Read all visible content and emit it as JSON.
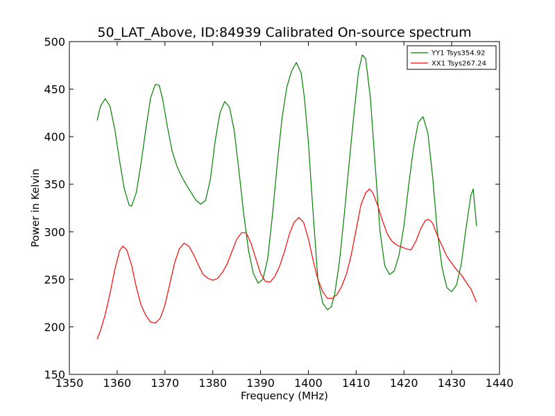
{
  "chart_data": {
    "type": "line",
    "title": "50_LAT_Above, ID:84939 Calibrated On-source spectrum",
    "xlabel": "Frequency (MHz)",
    "ylabel": "Power in Kelvin",
    "xlim": [
      1350,
      1440
    ],
    "ylim": [
      150,
      500
    ],
    "xticks": [
      1350,
      1360,
      1370,
      1380,
      1390,
      1400,
      1410,
      1420,
      1430,
      1440
    ],
    "yticks": [
      150,
      200,
      250,
      300,
      350,
      400,
      450,
      500
    ],
    "grid": false,
    "legend_position": "top-right",
    "series": [
      {
        "name": "YY1 Tsys354.92",
        "color": "#008000",
        "x": [
          1355.8,
          1356.5,
          1357.5,
          1358.5,
          1359.5,
          1360.5,
          1361.5,
          1362.5,
          1363.0,
          1364.0,
          1365.0,
          1366.0,
          1367.0,
          1368.0,
          1368.8,
          1369.5,
          1370.5,
          1371.5,
          1372.5,
          1373.5,
          1374.5,
          1375.5,
          1376.5,
          1377.5,
          1378.5,
          1379.5,
          1380.5,
          1381.5,
          1382.5,
          1383.5,
          1384.5,
          1385.5,
          1386.5,
          1387.5,
          1388.5,
          1389.5,
          1390.5,
          1391.5,
          1392.5,
          1393.5,
          1394.5,
          1395.5,
          1396.5,
          1397.5,
          1398.5,
          1399.2,
          1400.0,
          1401.0,
          1402.0,
          1403.0,
          1404.0,
          1404.8,
          1405.5,
          1406.5,
          1407.5,
          1408.5,
          1409.5,
          1410.5,
          1411.3,
          1412.0,
          1413.0,
          1414.0,
          1415.0,
          1416.0,
          1417.0,
          1418.0,
          1419.0,
          1420.0,
          1421.0,
          1422.0,
          1423.0,
          1424.0,
          1425.0,
          1426.0,
          1427.0,
          1428.0,
          1429.0,
          1430.0,
          1431.0,
          1432.0,
          1433.0,
          1434.0,
          1434.5,
          1435.2
        ],
        "y": [
          417,
          432,
          440,
          432,
          408,
          375,
          345,
          328,
          327,
          341,
          372,
          408,
          441,
          455,
          454,
          440,
          411,
          385,
          369,
          358,
          349,
          341,
          333,
          329,
          333,
          355,
          395,
          425,
          437,
          431,
          406,
          363,
          318,
          280,
          256,
          246,
          250,
          272,
          318,
          372,
          420,
          452,
          469,
          478,
          467,
          440,
          395,
          320,
          250,
          225,
          218,
          221,
          234,
          268,
          317,
          370,
          422,
          469,
          486,
          482,
          440,
          369,
          300,
          264,
          255,
          259,
          276,
          306,
          349,
          388,
          415,
          421,
          404,
          358,
          300,
          262,
          241,
          237,
          244,
          266,
          304,
          338,
          345,
          306
        ]
      },
      {
        "name": "XX1 Tsys267.24",
        "color": "#ff0000",
        "x": [
          1355.8,
          1356.5,
          1357.5,
          1358.5,
          1359.5,
          1360.5,
          1361.2,
          1362.0,
          1363.0,
          1364.0,
          1365.0,
          1366.0,
          1367.0,
          1368.0,
          1369.0,
          1370.0,
          1371.0,
          1372.0,
          1373.0,
          1374.0,
          1375.0,
          1376.0,
          1377.0,
          1378.0,
          1379.0,
          1380.0,
          1381.0,
          1382.0,
          1383.0,
          1384.0,
          1385.0,
          1386.0,
          1387.0,
          1388.0,
          1389.0,
          1390.0,
          1391.0,
          1392.0,
          1393.0,
          1394.0,
          1395.0,
          1396.0,
          1397.0,
          1398.0,
          1399.0,
          1400.0,
          1401.0,
          1402.0,
          1403.0,
          1404.0,
          1405.0,
          1406.0,
          1407.0,
          1408.0,
          1409.0,
          1410.0,
          1411.0,
          1412.0,
          1412.8,
          1413.5,
          1414.5,
          1415.5,
          1416.5,
          1417.5,
          1418.5,
          1419.5,
          1420.5,
          1421.5,
          1422.5,
          1423.5,
          1424.5,
          1425.2,
          1426.0,
          1427.0,
          1428.0,
          1429.0,
          1430.0,
          1431.0,
          1432.0,
          1433.0,
          1434.0,
          1435.2
        ],
        "y": [
          187,
          196,
          213,
          235,
          260,
          280,
          285,
          281,
          265,
          242,
          223,
          212,
          205,
          204,
          209,
          223,
          245,
          267,
          282,
          288,
          285,
          276,
          265,
          255,
          251,
          249,
          251,
          257,
          266,
          279,
          292,
          299,
          299,
          288,
          272,
          256,
          248,
          247,
          253,
          264,
          279,
          297,
          310,
          315,
          310,
          293,
          270,
          250,
          237,
          230,
          230,
          234,
          243,
          256,
          276,
          302,
          328,
          341,
          345,
          341,
          328,
          312,
          298,
          290,
          286,
          284,
          282,
          281,
          290,
          303,
          312,
          313,
          309,
          296,
          285,
          274,
          267,
          260,
          255,
          247,
          240,
          226
        ]
      }
    ]
  }
}
